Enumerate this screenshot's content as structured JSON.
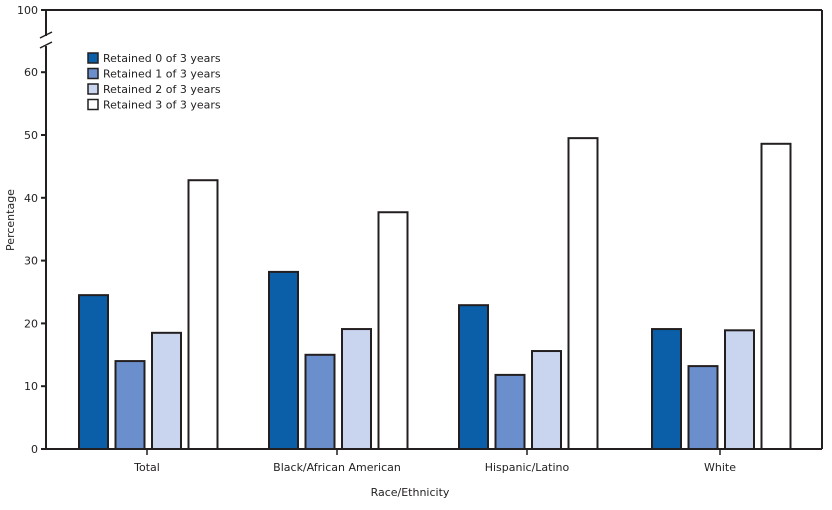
{
  "chart_data": {
    "type": "bar",
    "title": "",
    "xlabel": "Race/Ethnicity",
    "ylabel": "Percentage",
    "ylim": [
      0,
      100
    ],
    "axis_break": [
      60,
      100
    ],
    "yticks": [
      0,
      10,
      20,
      30,
      40,
      50,
      60,
      100
    ],
    "grid": false,
    "legend_position": "top-left",
    "categories": [
      "Total",
      "Black/African American",
      "Hispanic/Latino",
      "White"
    ],
    "series": [
      {
        "name": "Retained 0 of 3 years",
        "color": "#0a5fa8",
        "values": [
          24.5,
          28.2,
          22.9,
          19.1
        ]
      },
      {
        "name": "Retained 1 of 3 years",
        "color": "#6b8fcc",
        "values": [
          14.0,
          15.0,
          11.8,
          13.2
        ]
      },
      {
        "name": "Retained 2 of 3 years",
        "color": "#c9d4ef",
        "values": [
          18.5,
          19.1,
          15.6,
          18.9
        ]
      },
      {
        "name": "Retained 3 of 3 years",
        "color": "#ffffff",
        "values": [
          42.8,
          37.7,
          49.5,
          48.6
        ]
      }
    ]
  }
}
